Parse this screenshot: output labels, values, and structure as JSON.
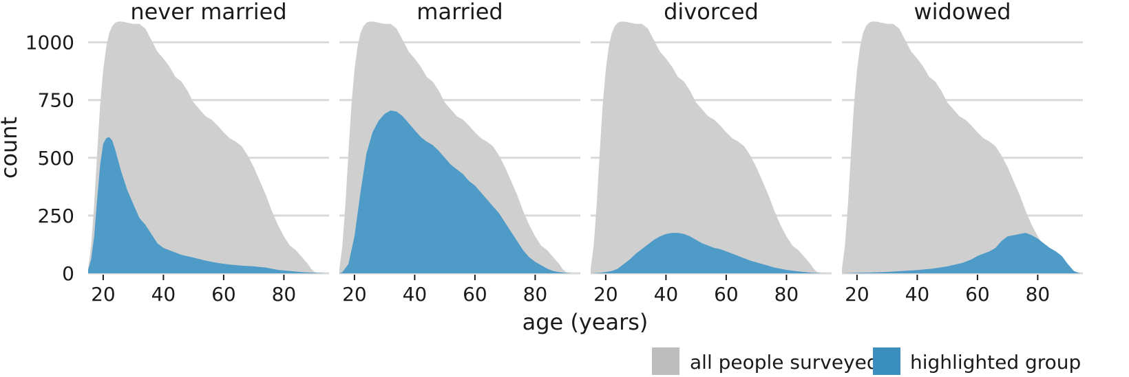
{
  "chart_data": {
    "type": "area",
    "xlabel": "age (years)",
    "ylabel": "count",
    "xticks": [
      20,
      40,
      60,
      80
    ],
    "yticks": [
      0,
      250,
      500,
      750,
      1000
    ],
    "xlim": [
      15,
      95
    ],
    "ylim": [
      0,
      1100
    ],
    "grid": "horizontal",
    "legend": {
      "placement": "bottom-right",
      "entries": [
        {
          "label": "all people surveyed",
          "color": "#bdbdbd"
        },
        {
          "label": "highlighted group",
          "color": "#3a8fbf"
        }
      ]
    },
    "colors": {
      "all": "#cfcfcf",
      "group": "#4d9bc6"
    },
    "all_people": {
      "x": [
        15,
        16,
        17,
        18,
        19,
        20,
        21,
        22,
        23,
        24,
        25,
        26,
        27,
        28,
        30,
        32,
        34,
        36,
        38,
        40,
        42,
        44,
        46,
        48,
        50,
        52,
        54,
        56,
        58,
        60,
        62,
        64,
        66,
        68,
        70,
        72,
        74,
        76,
        78,
        80,
        82,
        84,
        86,
        88,
        89,
        90,
        91,
        92,
        93,
        94
      ],
      "y": [
        20,
        120,
        300,
        520,
        730,
        880,
        980,
        1040,
        1070,
        1085,
        1090,
        1090,
        1088,
        1085,
        1080,
        1080,
        1060,
        1010,
        960,
        930,
        895,
        850,
        830,
        790,
        740,
        710,
        680,
        665,
        640,
        610,
        585,
        570,
        550,
        510,
        460,
        400,
        340,
        270,
        210,
        160,
        120,
        100,
        70,
        40,
        20,
        8,
        2,
        0,
        0,
        0
      ]
    },
    "series": [
      {
        "name": "never married",
        "x": [
          15,
          16,
          17,
          18,
          19,
          20,
          21,
          22,
          23,
          24,
          26,
          28,
          30,
          32,
          34,
          36,
          38,
          40,
          42,
          44,
          46,
          50,
          54,
          58,
          62,
          66,
          70,
          74,
          78,
          82,
          86,
          90,
          94
        ],
        "y": [
          15,
          60,
          160,
          320,
          470,
          560,
          585,
          590,
          575,
          535,
          440,
          360,
          300,
          240,
          210,
          170,
          130,
          110,
          100,
          90,
          80,
          68,
          55,
          45,
          38,
          33,
          30,
          25,
          15,
          10,
          5,
          2,
          0
        ]
      },
      {
        "name": "married",
        "x": [
          15,
          16,
          18,
          20,
          22,
          24,
          26,
          28,
          30,
          32,
          34,
          36,
          38,
          40,
          42,
          44,
          46,
          48,
          50,
          52,
          54,
          56,
          58,
          60,
          62,
          64,
          66,
          68,
          70,
          72,
          74,
          76,
          78,
          80,
          82,
          84,
          86,
          88,
          90,
          92,
          94
        ],
        "y": [
          0,
          5,
          40,
          160,
          350,
          520,
          610,
          660,
          690,
          705,
          700,
          680,
          650,
          620,
          590,
          570,
          555,
          530,
          500,
          470,
          450,
          430,
          400,
          380,
          350,
          320,
          290,
          260,
          220,
          180,
          140,
          100,
          70,
          50,
          35,
          20,
          10,
          5,
          2,
          0,
          0
        ]
      },
      {
        "name": "divorced",
        "x": [
          15,
          18,
          20,
          22,
          24,
          26,
          28,
          30,
          32,
          34,
          36,
          38,
          40,
          42,
          44,
          46,
          48,
          50,
          52,
          54,
          56,
          58,
          60,
          64,
          68,
          72,
          76,
          80,
          84,
          88,
          92,
          94
        ],
        "y": [
          0,
          2,
          5,
          10,
          20,
          40,
          60,
          85,
          105,
          125,
          145,
          160,
          170,
          175,
          175,
          170,
          160,
          145,
          130,
          120,
          110,
          105,
          95,
          75,
          55,
          40,
          25,
          15,
          8,
          3,
          0,
          0
        ]
      },
      {
        "name": "widowed",
        "x": [
          15,
          20,
          25,
          30,
          35,
          40,
          45,
          50,
          55,
          58,
          60,
          62,
          64,
          66,
          68,
          70,
          72,
          74,
          76,
          78,
          80,
          82,
          84,
          86,
          88,
          90,
          92,
          94
        ],
        "y": [
          0,
          2,
          4,
          6,
          10,
          14,
          20,
          30,
          45,
          60,
          75,
          85,
          95,
          110,
          140,
          160,
          165,
          170,
          175,
          165,
          150,
          130,
          110,
          95,
          75,
          40,
          10,
          0
        ]
      }
    ]
  }
}
